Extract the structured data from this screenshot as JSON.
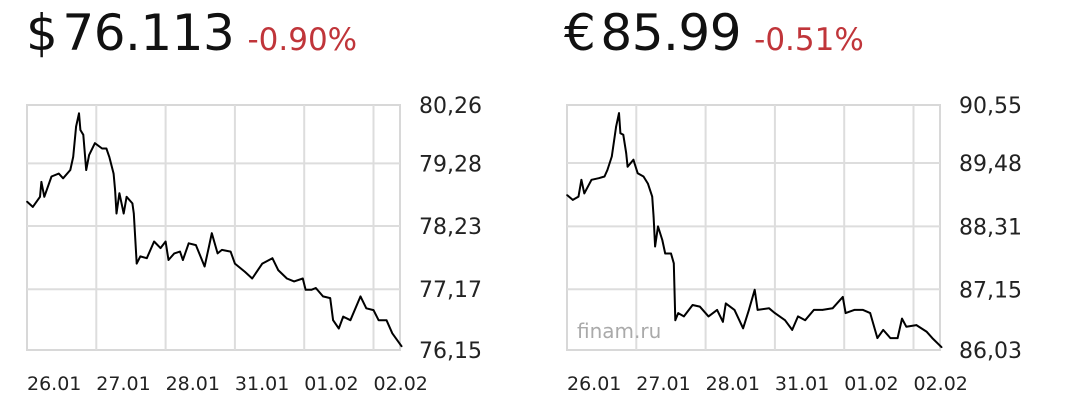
{
  "quotes": [
    {
      "symbol": "$",
      "price": "76.113",
      "change": "-0.90%"
    },
    {
      "symbol": "€",
      "price": "85.99",
      "change": "-0.51%"
    }
  ],
  "colors": {
    "negative": "#c0353a",
    "line": "#000000",
    "grid": "#dddddd"
  },
  "chart_data": [
    {
      "type": "line",
      "grid": true,
      "x_tick_labels": [
        "26.01",
        "27.01",
        "28.01",
        "31.01",
        "01.02",
        "02.02"
      ],
      "xlim": [
        "26.01 00:00",
        "02.02 09:45"
      ],
      "y_tick_labels": [
        "80,26",
        "79,28",
        "78,23",
        "77,17",
        "76,15"
      ],
      "y_ticks": [
        80.26,
        79.28,
        78.23,
        77.17,
        76.15
      ],
      "ylim": [
        76.15,
        80.26
      ],
      "y_axis_position": "right",
      "watermark": "",
      "series": [
        {
          "points": [
            [
              "26.01 00:00",
              78.64
            ],
            [
              "26.01 02:00",
              78.55
            ],
            [
              "26.01 04:30",
              78.72
            ],
            [
              "26.01 05:00",
              78.97
            ],
            [
              "26.01 06:00",
              78.72
            ],
            [
              "26.01 08:30",
              79.06
            ],
            [
              "26.01 11:00",
              79.11
            ],
            [
              "26.01 12:30",
              79.03
            ],
            [
              "26.01 15:00",
              79.17
            ],
            [
              "26.01 16:00",
              79.39
            ],
            [
              "26.01 17:00",
              79.9
            ],
            [
              "26.01 18:00",
              80.12
            ],
            [
              "26.01 18:30",
              79.84
            ],
            [
              "26.01 19:30",
              79.76
            ],
            [
              "26.01 20:30",
              79.17
            ],
            [
              "26.01 21:30",
              79.42
            ],
            [
              "26.01 23:30",
              79.62
            ],
            [
              "27.01 02:00",
              79.53
            ],
            [
              "27.01 03:30",
              79.53
            ],
            [
              "27.01 04:30",
              79.39
            ],
            [
              "27.01 06:00",
              79.11
            ],
            [
              "27.01 06:30",
              78.83
            ],
            [
              "27.01 07:00",
              78.44
            ],
            [
              "27.01 08:00",
              78.78
            ],
            [
              "27.01 09:30",
              78.44
            ],
            [
              "27.01 10:30",
              78.72
            ],
            [
              "27.01 12:30",
              78.61
            ],
            [
              "27.01 13:00",
              78.44
            ],
            [
              "27.01 14:00",
              77.6
            ],
            [
              "27.01 15:15",
              77.72
            ],
            [
              "27.01 17:30",
              77.69
            ],
            [
              "27.01 20:00",
              77.97
            ],
            [
              "27.01 22:15",
              77.86
            ],
            [
              "28.01 00:00",
              77.97
            ],
            [
              "28.01 01:00",
              77.66
            ],
            [
              "28.01 03:00",
              77.77
            ],
            [
              "28.01 05:00",
              77.8
            ],
            [
              "28.01 06:00",
              77.66
            ],
            [
              "28.01 08:00",
              77.94
            ],
            [
              "28.01 10:30",
              77.91
            ],
            [
              "28.01 13:30",
              77.55
            ],
            [
              "28.01 15:00",
              77.88
            ],
            [
              "28.01 16:00",
              78.11
            ],
            [
              "28.01 18:00",
              77.77
            ],
            [
              "28.01 19:30",
              77.83
            ],
            [
              "28.01 22:30",
              77.8
            ],
            [
              "31.01 00:00",
              77.6
            ],
            [
              "31.01 03:30",
              77.46
            ],
            [
              "31.01 06:00",
              77.35
            ],
            [
              "31.01 09:30",
              77.6
            ],
            [
              "31.01 13:00",
              77.69
            ],
            [
              "31.01 15:00",
              77.49
            ],
            [
              "31.01 18:00",
              77.35
            ],
            [
              "31.01 20:30",
              77.3
            ],
            [
              "31.01 23:30",
              77.35
            ],
            [
              "01.02 00:30",
              77.16
            ],
            [
              "01.02 02:30",
              77.16
            ],
            [
              "01.02 04:00",
              77.19
            ],
            [
              "01.02 06:30",
              77.05
            ],
            [
              "01.02 09:00",
              77.02
            ],
            [
              "01.02 10:00",
              76.65
            ],
            [
              "01.02 12:00",
              76.51
            ],
            [
              "01.02 13:30",
              76.71
            ],
            [
              "01.02 16:00",
              76.65
            ],
            [
              "01.02 19:30",
              77.05
            ],
            [
              "01.02 21:30",
              76.85
            ],
            [
              "02.02 00:00",
              76.82
            ],
            [
              "02.02 01:45",
              76.65
            ],
            [
              "02.02 04:30",
              76.65
            ],
            [
              "02.02 06:30",
              76.43
            ],
            [
              "02.02 09:45",
              76.21
            ]
          ]
        }
      ]
    },
    {
      "type": "line",
      "grid": true,
      "x_tick_labels": [
        "26.01",
        "27.01",
        "28.01",
        "31.01",
        "01.02",
        "02.02"
      ],
      "xlim": [
        "26.01 00:00",
        "02.02 09:45"
      ],
      "y_tick_labels": [
        "90,55",
        "89,48",
        "88,31",
        "87,15",
        "86,03"
      ],
      "y_ticks": [
        90.55,
        89.48,
        88.31,
        87.15,
        86.03
      ],
      "ylim": [
        86.03,
        90.55
      ],
      "y_axis_position": "right",
      "watermark": "finam.ru",
      "series": [
        {
          "points": [
            [
              "26.01 00:00",
              88.89
            ],
            [
              "26.01 02:00",
              88.8
            ],
            [
              "26.01 04:00",
              88.86
            ],
            [
              "26.01 05:00",
              89.17
            ],
            [
              "26.01 06:00",
              88.92
            ],
            [
              "26.01 08:30",
              89.17
            ],
            [
              "26.01 11:00",
              89.2
            ],
            [
              "26.01 13:00",
              89.23
            ],
            [
              "26.01 14:00",
              89.35
            ],
            [
              "26.01 15:30",
              89.6
            ],
            [
              "26.01 17:00",
              90.15
            ],
            [
              "26.01 18:00",
              90.4
            ],
            [
              "26.01 18:30",
              90.03
            ],
            [
              "26.01 19:30",
              90.0
            ],
            [
              "26.01 20:30",
              89.66
            ],
            [
              "26.01 21:00",
              89.41
            ],
            [
              "26.01 23:00",
              89.54
            ],
            [
              "27.01 00:30",
              89.29
            ],
            [
              "27.01 02:30",
              89.23
            ],
            [
              "27.01 04:00",
              89.1
            ],
            [
              "27.01 05:30",
              88.86
            ],
            [
              "27.01 06:00",
              88.49
            ],
            [
              "27.01 06:30",
              87.94
            ],
            [
              "27.01 07:30",
              88.31
            ],
            [
              "27.01 09:00",
              88.06
            ],
            [
              "27.01 10:00",
              87.81
            ],
            [
              "27.01 12:00",
              87.81
            ],
            [
              "27.01 13:00",
              87.63
            ],
            [
              "27.01 13:30",
              86.58
            ],
            [
              "27.01 14:30",
              86.71
            ],
            [
              "27.01 16:30",
              86.65
            ],
            [
              "27.01 19:30",
              86.86
            ],
            [
              "27.01 22:00",
              86.83
            ],
            [
              "28.01 01:00",
              86.65
            ],
            [
              "28.01 04:00",
              86.77
            ],
            [
              "28.01 06:00",
              86.55
            ],
            [
              "28.01 07:00",
              86.89
            ],
            [
              "28.01 10:00",
              86.77
            ],
            [
              "28.01 13:00",
              86.43
            ],
            [
              "28.01 15:00",
              86.77
            ],
            [
              "28.01 17:00",
              87.14
            ],
            [
              "28.01 18:00",
              86.77
            ],
            [
              "28.01 22:00",
              86.8
            ],
            [
              "31.01 00:00",
              86.71
            ],
            [
              "31.01 03:30",
              86.58
            ],
            [
              "31.01 06:00",
              86.4
            ],
            [
              "31.01 08:00",
              86.65
            ],
            [
              "31.01 10:30",
              86.58
            ],
            [
              "31.01 13:30",
              86.77
            ],
            [
              "31.01 16:30",
              86.77
            ],
            [
              "31.01 20:00",
              86.8
            ],
            [
              "31.01 23:30",
              87.01
            ],
            [
              "01.02 00:30",
              86.71
            ],
            [
              "01.02 03:30",
              86.77
            ],
            [
              "01.02 06:30",
              86.77
            ],
            [
              "01.02 09:00",
              86.71
            ],
            [
              "01.02 11:30",
              86.25
            ],
            [
              "01.02 13:30",
              86.4
            ],
            [
              "01.02 16:00",
              86.25
            ],
            [
              "01.02 18:30",
              86.25
            ],
            [
              "01.02 20:00",
              86.61
            ],
            [
              "01.02 21:30",
              86.46
            ],
            [
              "02.02 01:00",
              86.49
            ],
            [
              "02.02 04:30",
              86.37
            ],
            [
              "02.02 06:30",
              86.25
            ],
            [
              "02.02 09:45",
              86.08
            ]
          ]
        }
      ]
    }
  ]
}
